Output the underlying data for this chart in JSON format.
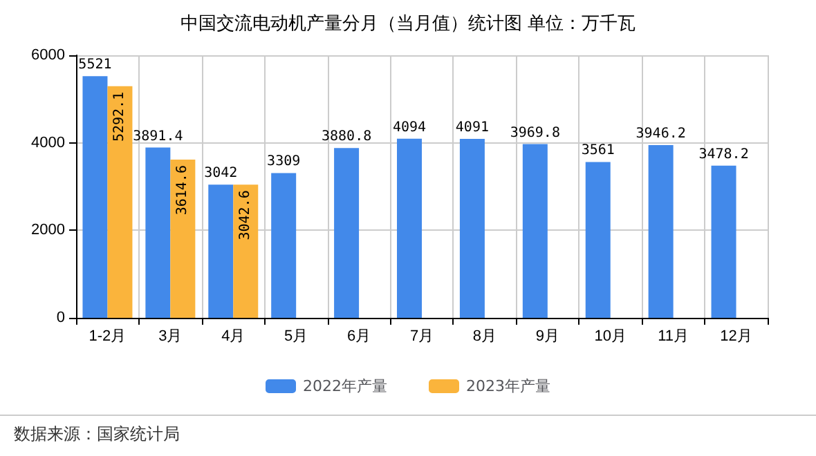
{
  "chart_data": {
    "type": "bar",
    "title": "中国交流电动机产量分月（当月值）统计图 单位：万千瓦",
    "categories": [
      "1-2月",
      "3月",
      "4月",
      "5月",
      "6月",
      "7月",
      "8月",
      "9月",
      "10月",
      "11月",
      "12月"
    ],
    "series": [
      {
        "name": "2022年产量",
        "color": "#4289ea",
        "values": [
          5521,
          3891.4,
          3042,
          3309,
          3880.8,
          4094,
          4091,
          3969.8,
          3561,
          3946.2,
          3478.2
        ]
      },
      {
        "name": "2023年产量",
        "color": "#fab43c",
        "values": [
          5292.1,
          3614.6,
          3042.6,
          null,
          null,
          null,
          null,
          null,
          null,
          null,
          null
        ]
      }
    ],
    "ylim": [
      0,
      6000
    ],
    "yticks": [
      0,
      2000,
      4000,
      6000
    ],
    "grid": true,
    "legend": "bottom",
    "data_labels": true,
    "annotations": [
      "数据来源：国家统计局"
    ]
  }
}
